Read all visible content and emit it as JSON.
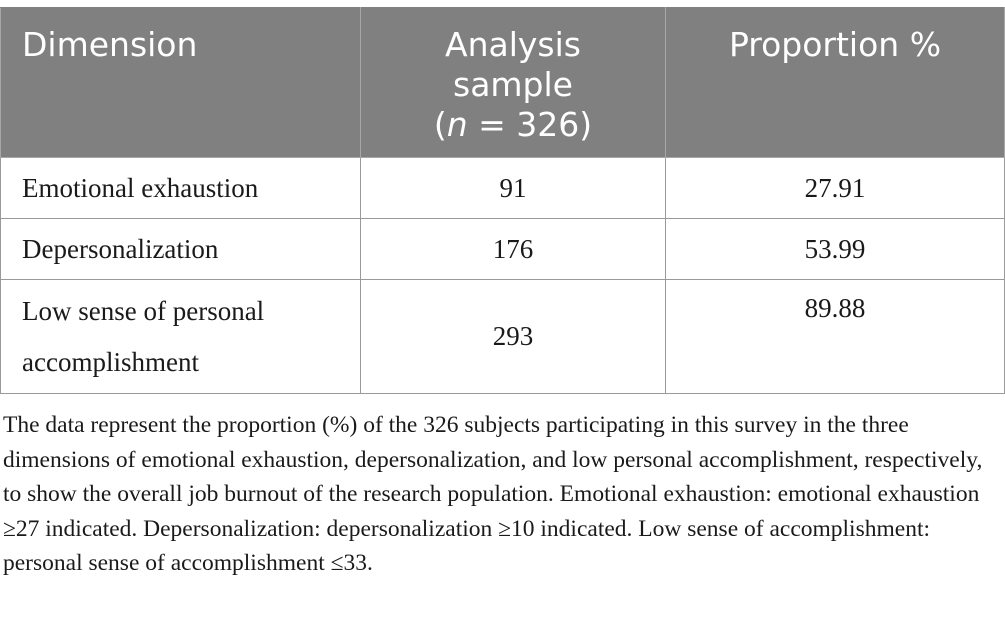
{
  "table": {
    "headers": {
      "dimension": "Dimension",
      "analysis_line1": "Analysis",
      "analysis_line2": "sample",
      "analysis_open": "(",
      "analysis_n": "n",
      "analysis_eq": " = 326)",
      "proportion": "Proportion %"
    },
    "rows": [
      {
        "dimension": "Emotional exhaustion",
        "analysis_sample": "91",
        "proportion": "27.91"
      },
      {
        "dimension": "Depersonalization",
        "analysis_sample": "176",
        "proportion": "53.99"
      },
      {
        "dimension": "Low sense of personal accomplishment",
        "analysis_sample": "293",
        "proportion": "89.88"
      }
    ]
  },
  "footnote": "The data represent the proportion (%) of the 326 subjects participating in this survey in the three dimensions of emotional exhaustion, depersonalization, and low personal accomplishment, respectively, to show the overall job burnout of the research population. Emotional exhaustion: emotional exhaustion ≥27 indicated. Depersonalization: depersonalization ≥10 indicated. Low sense of accomplishment: personal sense of accomplishment ≤33."
}
